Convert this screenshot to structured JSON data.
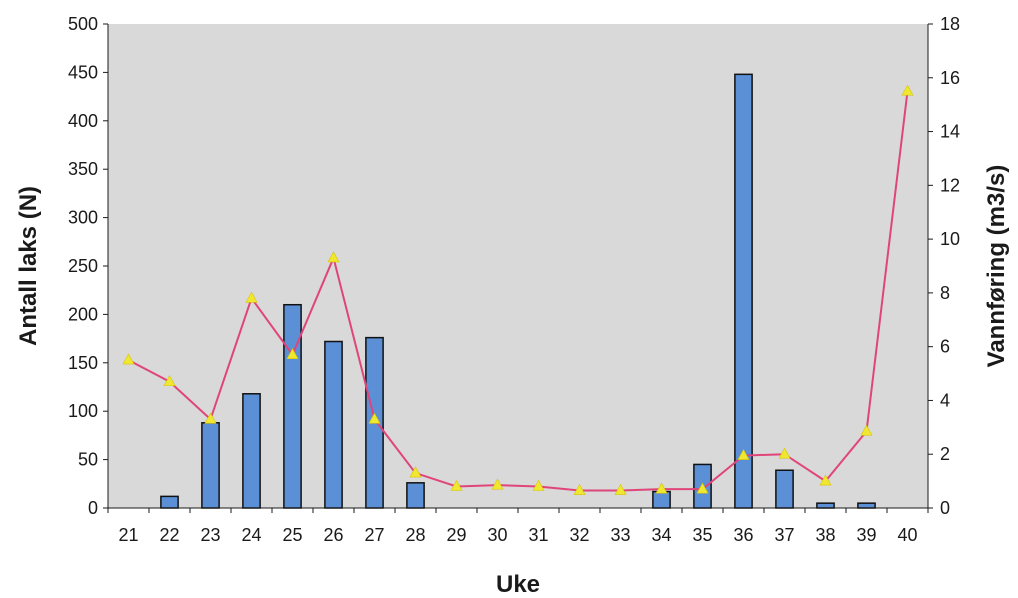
{
  "chart_data": {
    "type": "bar",
    "title": "",
    "xlabel": "Uke",
    "ylabel": "Antall laks (N)",
    "y2label": "Vannføring (m3/s)",
    "categories": [
      "21",
      "22",
      "23",
      "24",
      "25",
      "26",
      "27",
      "28",
      "29",
      "30",
      "31",
      "32",
      "33",
      "34",
      "35",
      "36",
      "37",
      "38",
      "39",
      "40"
    ],
    "ylim": [
      0,
      500
    ],
    "y2lim": [
      0,
      18
    ],
    "yticks": [
      "0",
      "50",
      "100",
      "150",
      "200",
      "250",
      "300",
      "350",
      "400",
      "450",
      "500"
    ],
    "y2ticks": [
      "0",
      "2",
      "4",
      "6",
      "8",
      "10",
      "12",
      "14",
      "16",
      "18"
    ],
    "grid": false,
    "legend": "none",
    "series": [
      {
        "kind": "bar",
        "axis": "left",
        "color": "#5b8fd6",
        "values": [
          0,
          12,
          88,
          118,
          210,
          172,
          176,
          26,
          0,
          0,
          0,
          0,
          0,
          17,
          45,
          448,
          39,
          5,
          5,
          0
        ]
      },
      {
        "kind": "line",
        "axis": "right",
        "color": "#e0457a",
        "marker_color": "#f0e830",
        "values": [
          5.5,
          4.7,
          3.3,
          7.8,
          5.7,
          9.3,
          3.3,
          1.3,
          0.8,
          0.85,
          0.8,
          0.65,
          0.65,
          0.7,
          0.7,
          1.95,
          2.0,
          1.0,
          2.85,
          15.5
        ]
      }
    ],
    "plot_background": "#d9d9d9"
  }
}
